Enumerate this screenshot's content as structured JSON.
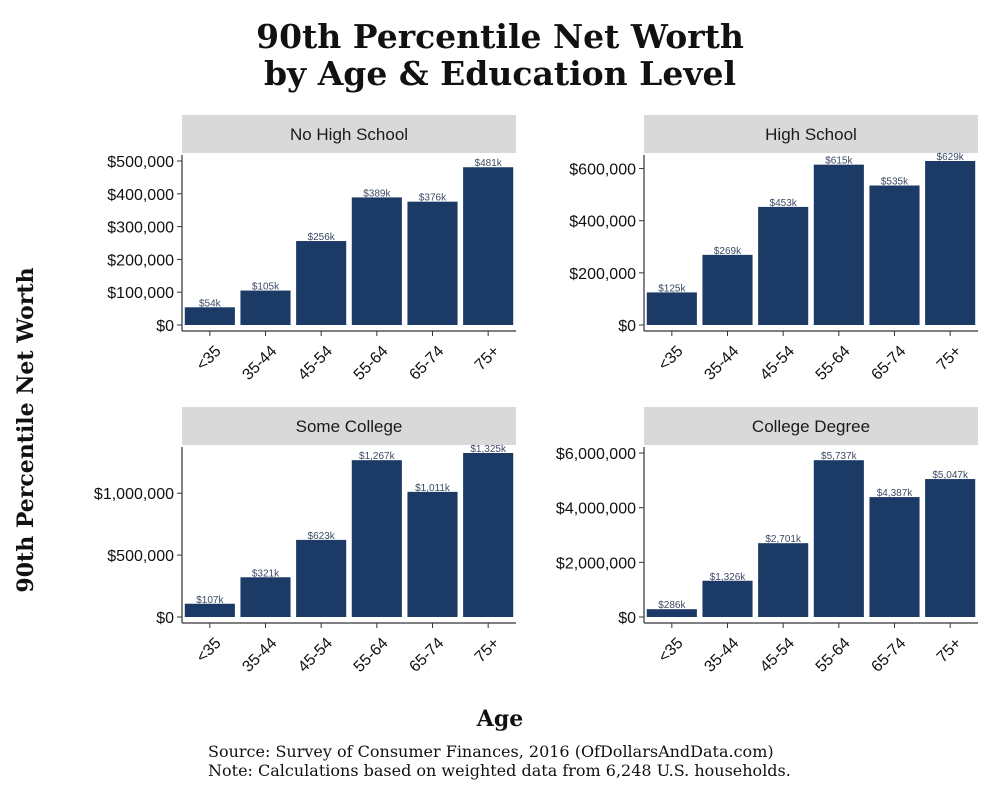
{
  "title": {
    "line1": "90th Percentile Net Worth",
    "line2": "by Age & Education Level"
  },
  "ylabel": "90th Percentile Net Worth",
  "xlabel": "Age",
  "footer": {
    "source": "Source:  Survey of Consumer Finances, 2016 (OfDollarsAndData.com)",
    "note": "Note: Calculations based on weighted data from 6,248 U.S. households."
  },
  "colors": {
    "bar": "#1b3a66",
    "strip": "#d9d9d9",
    "axis": "#333333"
  },
  "chart_data": [
    {
      "type": "bar",
      "title": "No High School",
      "xlabel": "Age",
      "ylabel": "90th Percentile Net Worth",
      "categories": [
        "<35",
        "35-44",
        "45-54",
        "55-64",
        "65-74",
        "75+"
      ],
      "values": [
        54000,
        105000,
        256000,
        389000,
        376000,
        481000
      ],
      "data_labels": [
        "$54k",
        "$105k",
        "$256k",
        "$389k",
        "$376k",
        "$481k"
      ],
      "ylim": [
        0,
        500000
      ],
      "yticks": [
        0,
        100000,
        200000,
        300000,
        400000,
        500000
      ],
      "ytick_labels": [
        "$0",
        "$100,000",
        "$200,000",
        "$300,000",
        "$400,000",
        "$500,000"
      ]
    },
    {
      "type": "bar",
      "title": "High School",
      "xlabel": "Age",
      "ylabel": "90th Percentile Net Worth",
      "categories": [
        "<35",
        "35-44",
        "45-54",
        "55-64",
        "65-74",
        "75+"
      ],
      "values": [
        125000,
        269000,
        453000,
        615000,
        535000,
        629000
      ],
      "data_labels": [
        "$125k",
        "$269k",
        "$453k",
        "$615k",
        "$535k",
        "$629k"
      ],
      "ylim": [
        0,
        629000
      ],
      "yticks": [
        0,
        200000,
        400000,
        600000
      ],
      "ytick_labels": [
        "$0",
        "$200,000",
        "$400,000",
        "$600,000"
      ]
    },
    {
      "type": "bar",
      "title": "Some College",
      "xlabel": "Age",
      "ylabel": "90th Percentile Net Worth",
      "categories": [
        "<35",
        "35-44",
        "45-54",
        "55-64",
        "65-74",
        "75+"
      ],
      "values": [
        107000,
        321000,
        623000,
        1267000,
        1011000,
        1325000
      ],
      "data_labels": [
        "$107k",
        "$321k",
        "$623k",
        "$1,267k",
        "$1,011k",
        "$1,325k"
      ],
      "ylim": [
        0,
        1325000
      ],
      "yticks": [
        0,
        500000,
        1000000
      ],
      "ytick_labels": [
        "$0",
        "$500,000",
        "$1,000,000"
      ]
    },
    {
      "type": "bar",
      "title": "College Degree",
      "xlabel": "Age",
      "ylabel": "90th Percentile Net Worth",
      "categories": [
        "<35",
        "35-44",
        "45-54",
        "55-64",
        "65-74",
        "75+"
      ],
      "values": [
        286000,
        1326000,
        2701000,
        5737000,
        4387000,
        5047000
      ],
      "data_labels": [
        "$286k",
        "$1,326k",
        "$2,701k",
        "$5,737k",
        "$4,387k",
        "$5,047k"
      ],
      "ylim": [
        0,
        6000000
      ],
      "yticks": [
        0,
        2000000,
        4000000,
        6000000
      ],
      "ytick_labels": [
        "$0",
        "$2,000,000",
        "$4,000,000",
        "$6,000,000"
      ]
    }
  ]
}
